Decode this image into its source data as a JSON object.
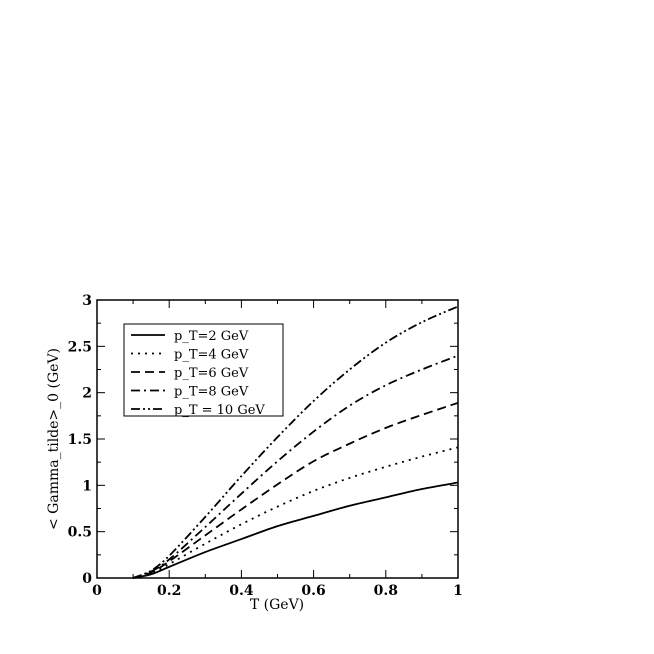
{
  "chart_data": {
    "type": "line",
    "xlabel": "T (GeV)",
    "ylabel": "< Gamma_tilde>_0 (GeV)",
    "xlim": [
      0,
      1
    ],
    "ylim": [
      0,
      3
    ],
    "x_ticks": [
      "0",
      "0.2",
      "0.4",
      "0.6",
      "0.8",
      "1"
    ],
    "y_ticks": [
      "0",
      "0.5",
      "1",
      "1.5",
      "2",
      "2.5",
      "3"
    ],
    "grid": false,
    "legend_position": "top-left",
    "series": [
      {
        "name": "p_T=2 GeV",
        "style": "solid",
        "x": [
          0.1,
          0.15,
          0.2,
          0.3,
          0.4,
          0.5,
          0.6,
          0.7,
          0.8,
          0.9,
          1.0
        ],
        "y": [
          0.0,
          0.04,
          0.12,
          0.28,
          0.42,
          0.56,
          0.67,
          0.78,
          0.87,
          0.96,
          1.03
        ]
      },
      {
        "name": "p_T=4 GeV",
        "style": "dotted",
        "x": [
          0.1,
          0.15,
          0.2,
          0.3,
          0.4,
          0.5,
          0.6,
          0.7,
          0.8,
          0.9,
          1.0
        ],
        "y": [
          0.0,
          0.05,
          0.15,
          0.37,
          0.58,
          0.77,
          0.94,
          1.08,
          1.2,
          1.31,
          1.41
        ]
      },
      {
        "name": "p_T=6 GeV",
        "style": "dashed",
        "x": [
          0.1,
          0.15,
          0.2,
          0.3,
          0.4,
          0.5,
          0.6,
          0.7,
          0.8,
          0.9,
          1.0
        ],
        "y": [
          0.0,
          0.06,
          0.18,
          0.46,
          0.74,
          1.01,
          1.26,
          1.45,
          1.62,
          1.76,
          1.89
        ]
      },
      {
        "name": "p_T=8 GeV",
        "style": "dash-dot",
        "x": [
          0.1,
          0.15,
          0.2,
          0.3,
          0.4,
          0.5,
          0.6,
          0.7,
          0.8,
          0.9,
          1.0
        ],
        "y": [
          0.0,
          0.07,
          0.2,
          0.55,
          0.91,
          1.26,
          1.58,
          1.86,
          2.08,
          2.25,
          2.4
        ]
      },
      {
        "name": "p_T = 10 GeV",
        "style": "dash-dot-dot",
        "x": [
          0.1,
          0.15,
          0.2,
          0.3,
          0.4,
          0.5,
          0.6,
          0.7,
          0.8,
          0.9,
          1.0
        ],
        "y": [
          0.0,
          0.08,
          0.24,
          0.66,
          1.1,
          1.52,
          1.91,
          2.25,
          2.54,
          2.76,
          2.93
        ]
      }
    ]
  }
}
